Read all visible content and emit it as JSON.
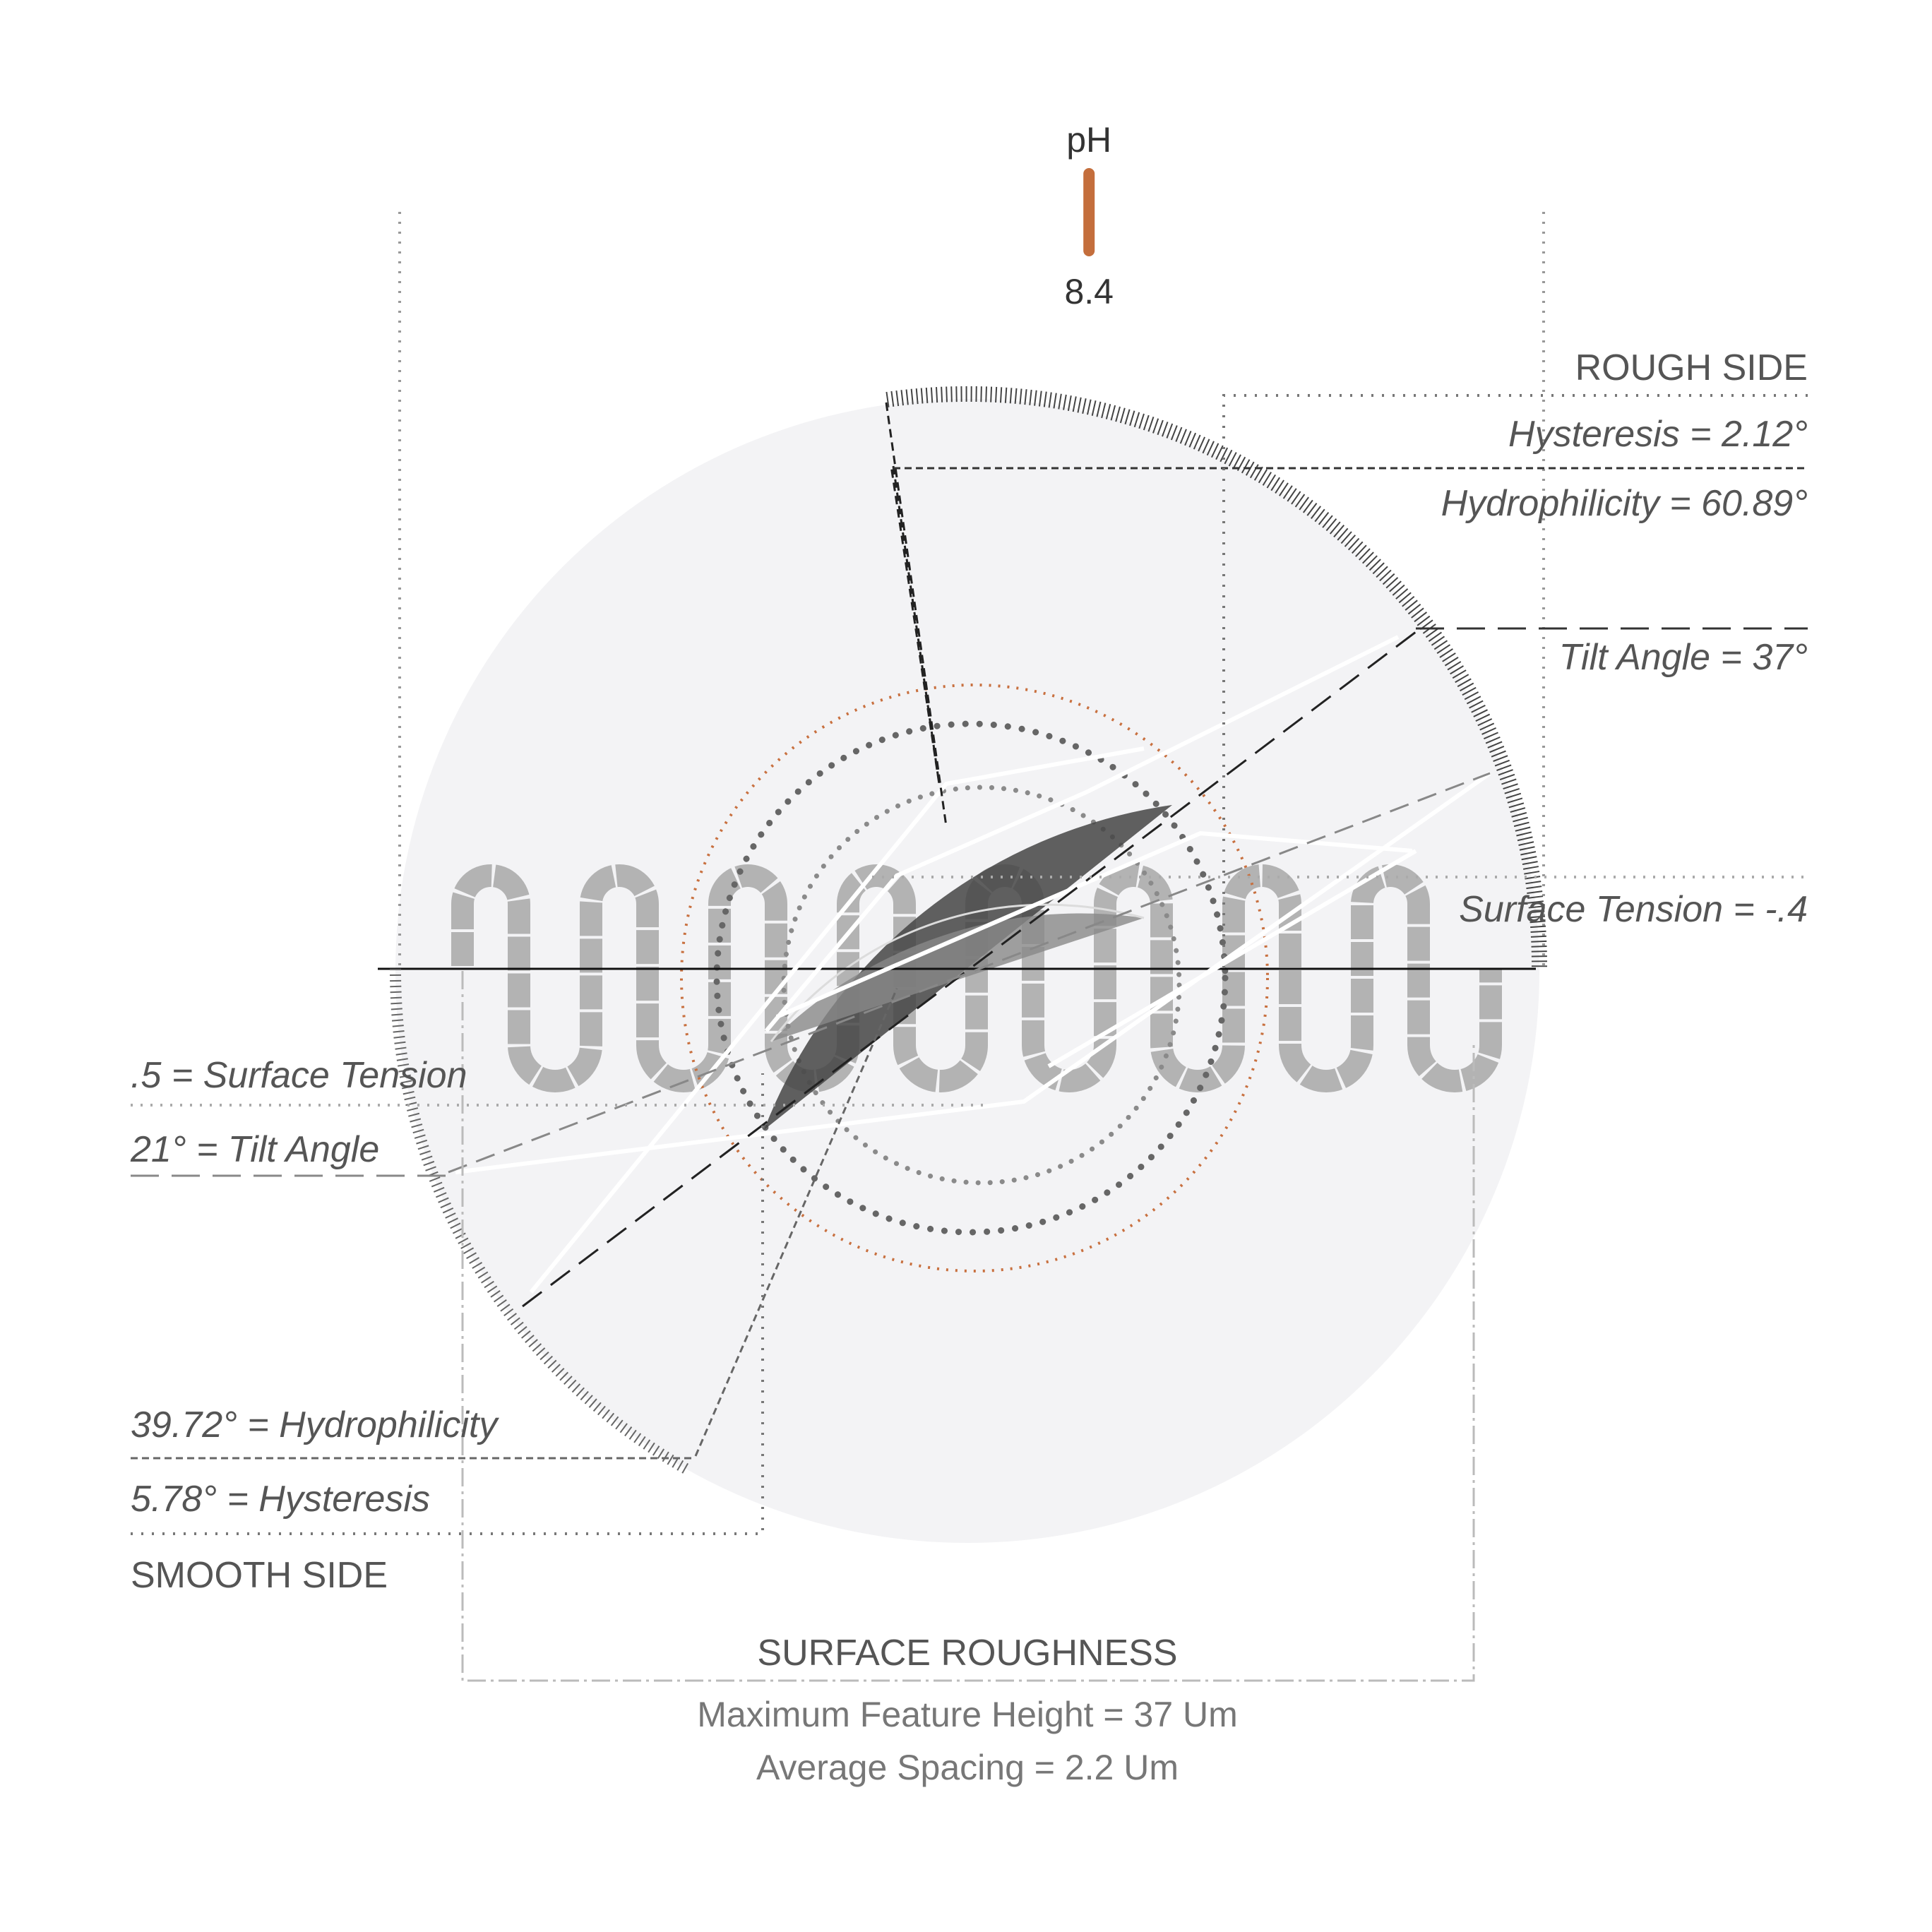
{
  "ph": {
    "label": "pH",
    "value": "8.4",
    "fraction": 0.606,
    "color_start": "#f2ec7e",
    "color_mid": "#c46e3c",
    "color_end": "#901820"
  },
  "rough_side": {
    "title": "ROUGH SIDE",
    "hysteresis": "Hysteresis = 2.12°",
    "hydrophilicity": "Hydrophilicity = 60.89°",
    "tilt_angle": "Tilt Angle = 37°",
    "surface_tension": "Surface Tension = -.4"
  },
  "smooth_side": {
    "title": "SMOOTH SIDE",
    "surface_tension": ".5 = Surface Tension",
    "tilt_angle": "21° = Tilt Angle",
    "hydrophilicity": "39.72° = Hydrophilicity",
    "hysteresis": "5.78° = Hysteresis"
  },
  "surface_roughness": {
    "title": "SURFACE ROUGHNESS",
    "max_height": "Maximum Feature Height = 37 Um",
    "avg_spacing": "Average Spacing = 2.2 Um"
  },
  "colors": {
    "disc": "#f3f3f5",
    "droplet": "#555555",
    "coil": "#b3b3b3",
    "accent": "#c8703f"
  }
}
